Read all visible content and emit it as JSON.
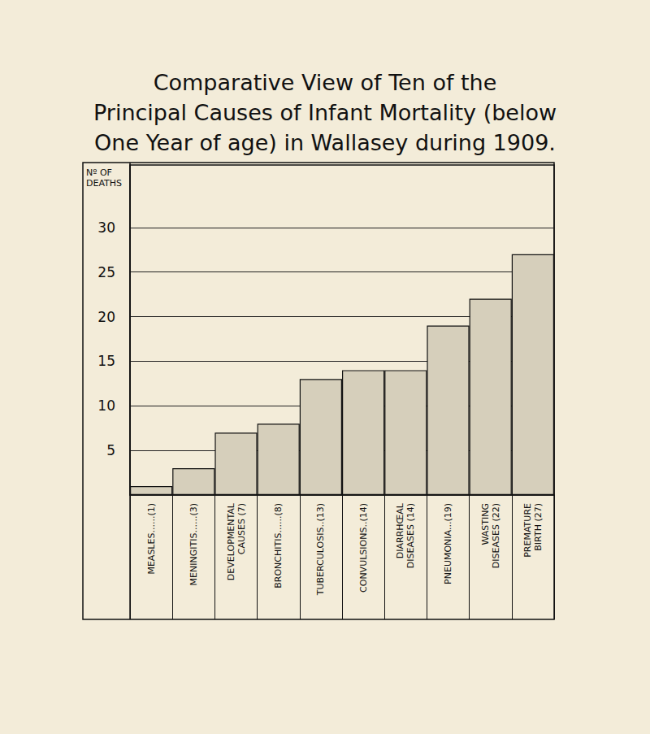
{
  "chart_data": {
    "type": "bar",
    "title": "Comparative View of Ten of the\nPrincipal Causes of Infant Mortality (below\nOne Year of age) in Wallasey during 1909.",
    "ylabel": "Nº OF\nDEATHS",
    "categories": [
      "MEASLES......(1)",
      "MENINGITIS......(3)",
      "DEVELOPMENTAL\nCAUSES (7)",
      "BRONCHITIS......(8)",
      "TUBERCULOSIS..(13)",
      "CONVULSIONS..(14)",
      "DIARRHŒAL\nDISEASES (14)",
      "PNEUMONIA...(19)",
      "WASTING\nDISEASES (22)",
      "PREMATURE\nBIRTH (27)"
    ],
    "values": [
      1,
      3,
      7,
      8,
      13,
      14,
      14,
      19,
      22,
      27
    ],
    "color": "#d6cfbb",
    "ylim": [
      0,
      37
    ],
    "yticks": [
      5,
      10,
      15,
      20,
      25,
      30
    ],
    "grid": true
  }
}
